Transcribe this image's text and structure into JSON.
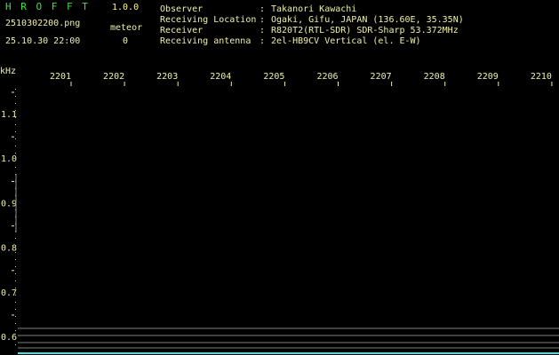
{
  "app": {
    "name": "H R O F F T",
    "version": "1.0.0",
    "file": "2510302200.png",
    "datetime": "25.10.30 22:00",
    "counter_label": "meteor",
    "counter_value": "0"
  },
  "info": [
    {
      "label": "Observer",
      "value": "Takanori Kawachi"
    },
    {
      "label": "Receiving Location",
      "value": "Ogaki, Gifu, JAPAN (136.60E, 35.35N)"
    },
    {
      "label": "Receiver",
      "value": "R820T2(RTL-SDR) SDR-Sharp 53.372MHz"
    },
    {
      "label": "Receiving antenna",
      "value": "2el-HB9CV Vertical (el. E-W)"
    }
  ],
  "separator": ":",
  "axis": {
    "unit": "kHz",
    "x_labels": [
      "2201",
      "2202",
      "2203",
      "2204",
      "2205",
      "2206",
      "2207",
      "2208",
      "2209",
      "2210"
    ],
    "y_labels": [
      "1.1",
      "1.0",
      "0.9",
      "0.8",
      "0.7",
      "0.6"
    ]
  }
}
